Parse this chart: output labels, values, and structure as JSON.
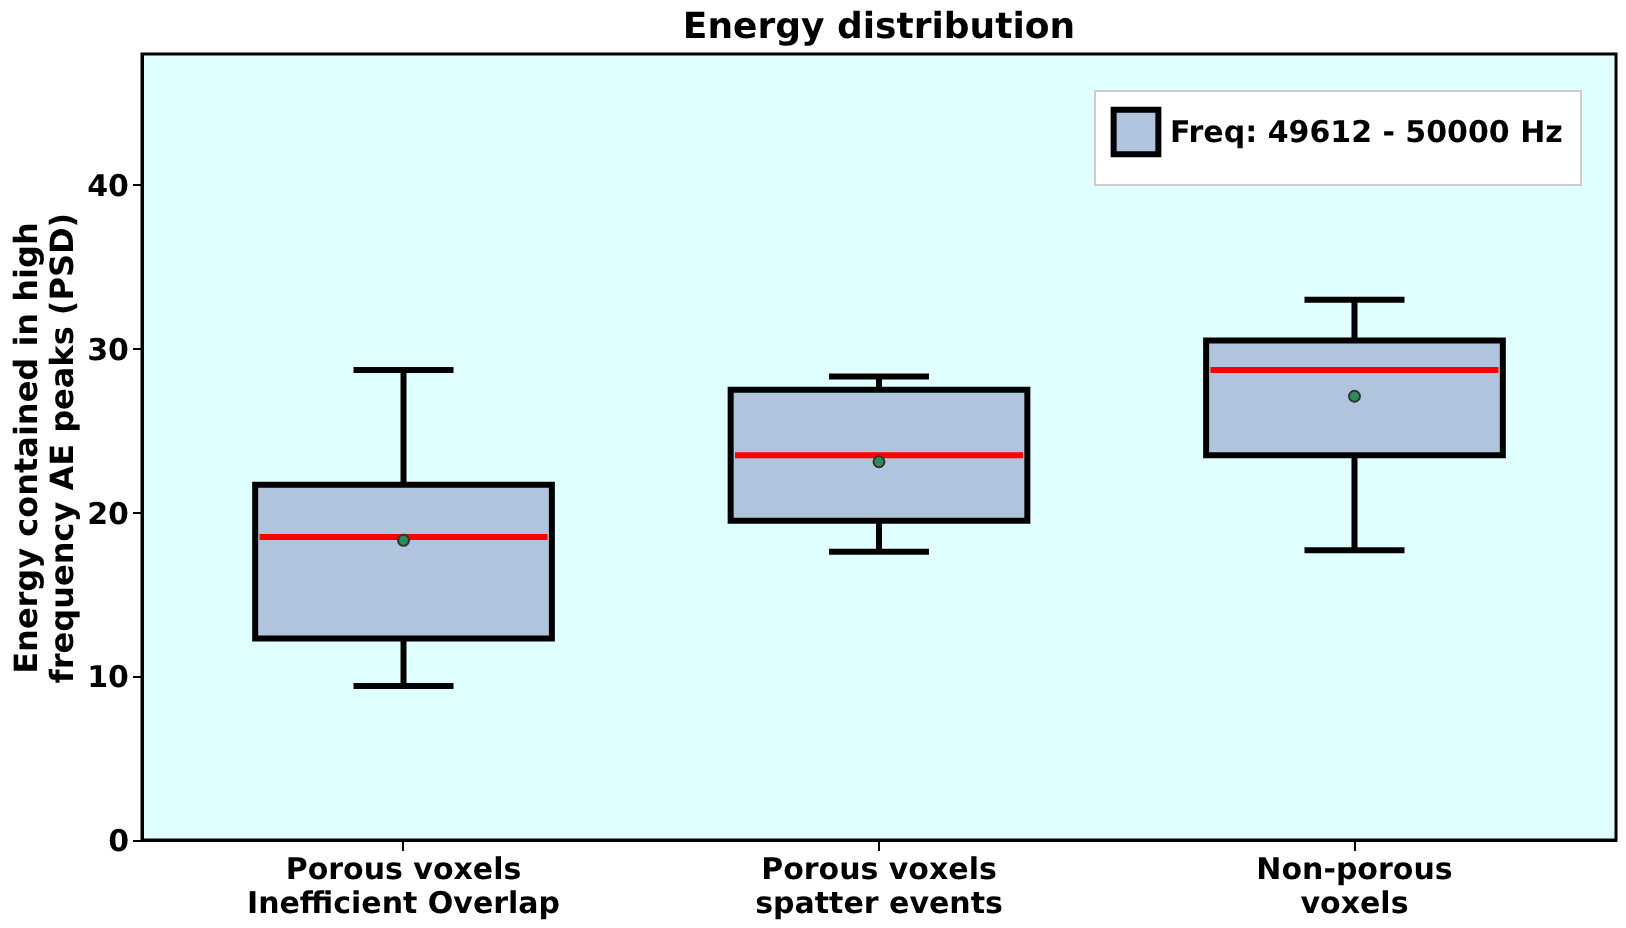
{
  "chart_data": {
    "type": "box",
    "title": "Energy distribution",
    "ylabel": "Energy contained in high\nfrequency AE peaks (PSD)",
    "categories": [
      "Porous voxels\nInefficient Overlap",
      "Porous voxels\nspatter events",
      "Non-porous\nvoxels"
    ],
    "ylim": [
      0,
      48
    ],
    "yticks": [
      0,
      10,
      20,
      30,
      40
    ],
    "grid": false,
    "legend": "top right",
    "series": [
      {
        "name": "Freq: 49612 - 50000 Hz",
        "color": "#b0c4de",
        "boxes": [
          {
            "low": 9.4,
            "q1": 12.3,
            "median": 18.5,
            "q3": 21.7,
            "high": 28.7,
            "mean": 18.3
          },
          {
            "low": 17.6,
            "q1": 19.5,
            "median": 23.5,
            "q3": 27.5,
            "high": 28.3,
            "mean": 23.1
          },
          {
            "low": 17.7,
            "q1": 23.5,
            "median": 28.7,
            "q3": 30.5,
            "high": 33.0,
            "mean": 27.1
          }
        ]
      }
    ]
  }
}
